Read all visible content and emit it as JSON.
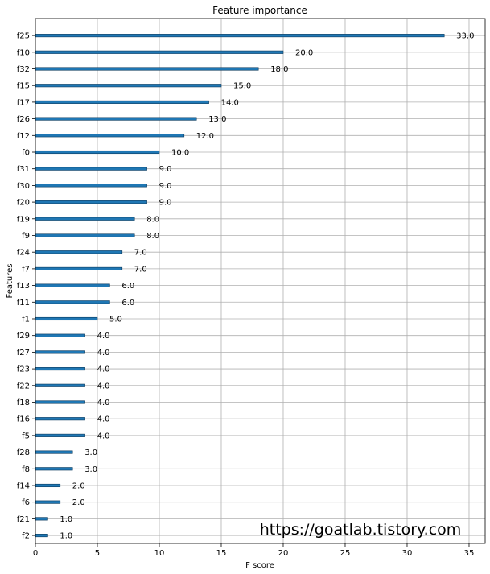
{
  "chart_data": {
    "type": "bar",
    "orientation": "horizontal",
    "title": "Feature importance",
    "xlabel": "F score",
    "ylabel": "Features",
    "xlim": [
      0,
      36.3
    ],
    "xticks": [
      0,
      5,
      10,
      15,
      20,
      25,
      30,
      35
    ],
    "grid": true,
    "categories": [
      "f25",
      "f10",
      "f32",
      "f15",
      "f17",
      "f26",
      "f12",
      "f0",
      "f31",
      "f30",
      "f20",
      "f19",
      "f9",
      "f24",
      "f7",
      "f13",
      "f11",
      "f1",
      "f29",
      "f27",
      "f23",
      "f22",
      "f18",
      "f16",
      "f5",
      "f28",
      "f8",
      "f14",
      "f6",
      "f21",
      "f2"
    ],
    "values": [
      33,
      20,
      18,
      15,
      14,
      13,
      12,
      10,
      9,
      9,
      9,
      8,
      8,
      7,
      7,
      6,
      6,
      5,
      4,
      4,
      4,
      4,
      4,
      4,
      4,
      3,
      3,
      2,
      2,
      1,
      1
    ],
    "value_labels": [
      "33.0",
      "20.0",
      "18.0",
      "15.0",
      "14.0",
      "13.0",
      "12.0",
      "10.0",
      "9.0",
      "9.0",
      "9.0",
      "8.0",
      "8.0",
      "7.0",
      "7.0",
      "6.0",
      "6.0",
      "5.0",
      "4.0",
      "4.0",
      "4.0",
      "4.0",
      "4.0",
      "4.0",
      "4.0",
      "3.0",
      "3.0",
      "2.0",
      "2.0",
      "1.0",
      "1.0"
    ],
    "bar_color": "#1f77b4"
  },
  "watermark": {
    "text": "https://goatlab.tistory.com",
    "color": "#1fb5a3"
  }
}
